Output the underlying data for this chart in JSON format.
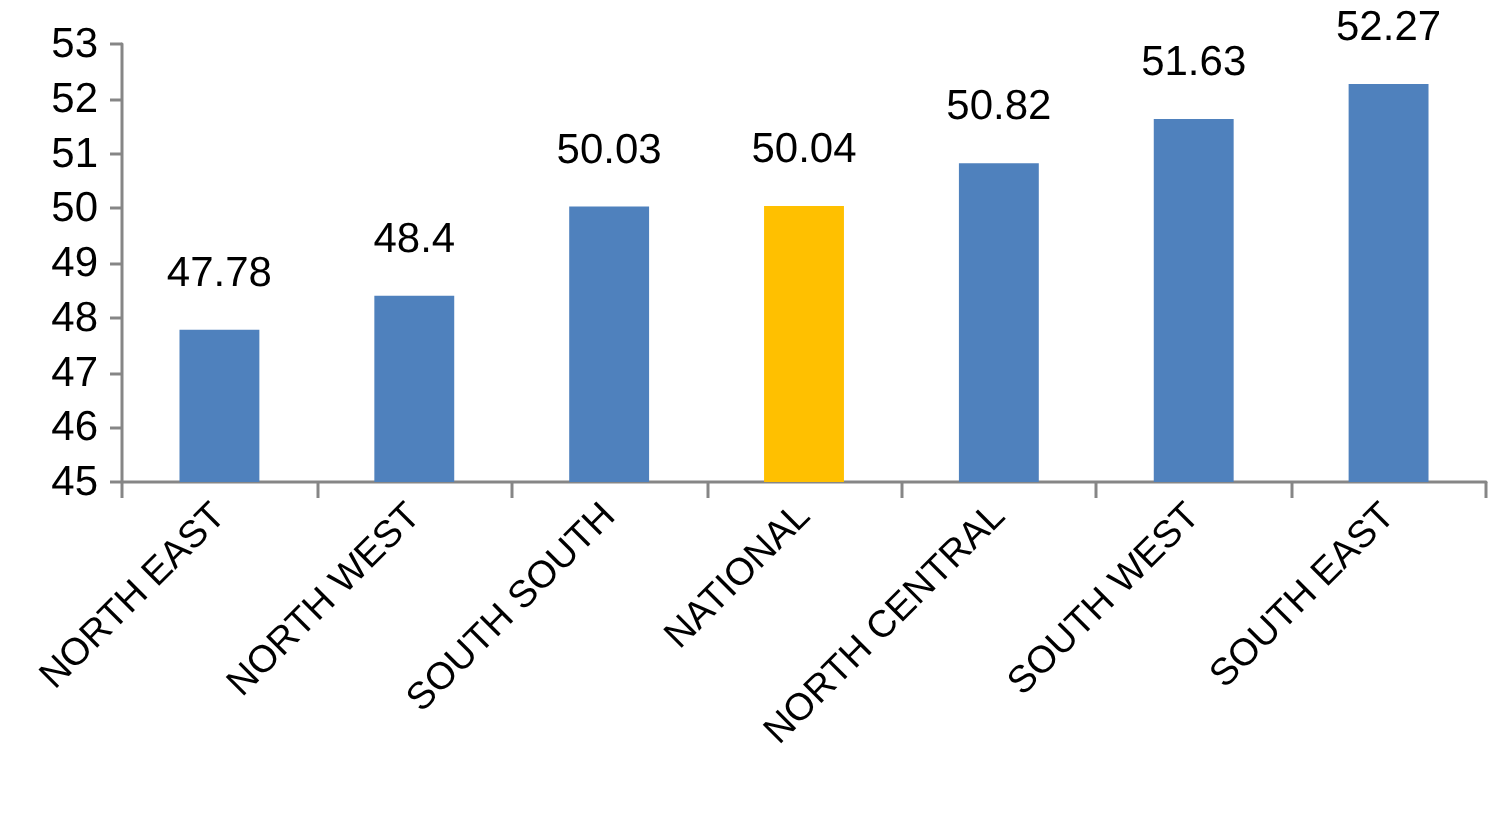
{
  "chart_data": {
    "type": "bar",
    "categories": [
      "NORTH EAST",
      "NORTH WEST",
      "SOUTH SOUTH",
      "NATIONAL",
      "NORTH CENTRAL",
      "SOUTH WEST",
      "SOUTH EAST"
    ],
    "values": [
      47.78,
      48.4,
      50.03,
      50.04,
      50.82,
      51.63,
      52.27
    ],
    "colors": [
      "#4f81bd",
      "#4f81bd",
      "#4f81bd",
      "#ffc000",
      "#4f81bd",
      "#4f81bd",
      "#4f81bd"
    ],
    "ylim": [
      45,
      53
    ],
    "yticks": [
      45,
      46,
      47,
      48,
      49,
      50,
      51,
      52,
      53
    ],
    "grid": false,
    "data_labels": true
  }
}
